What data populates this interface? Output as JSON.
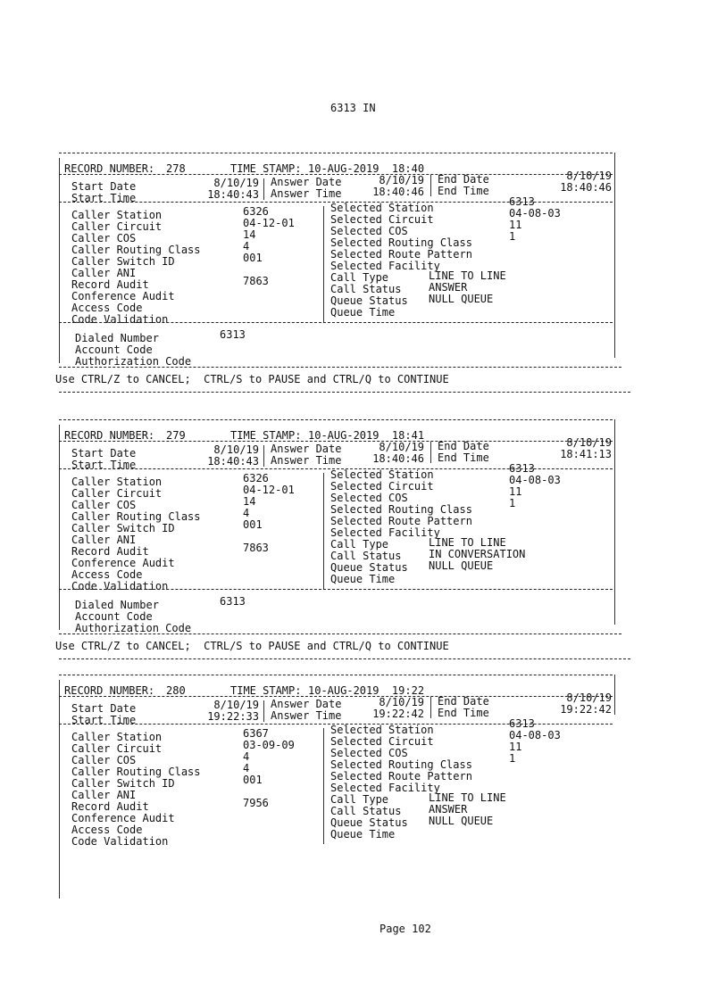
{
  "header": {
    "title": "6313 IN"
  },
  "labels": {
    "record_number": "RECORD NUMBER:",
    "time_stamp": "TIME STAMP:",
    "start_date": "Start Date",
    "start_time": "Start Time",
    "answer_date": "Answer Date",
    "answer_time": "Answer Time",
    "end_date": "End Date",
    "end_time": "End Time",
    "caller": [
      "Caller Station",
      "Caller Circuit",
      "Caller COS",
      "Caller Routing Class",
      "Caller Switch ID",
      "Caller ANI",
      "Record Audit",
      "Conference Audit",
      "Access Code",
      "Code Validation"
    ],
    "selected": [
      "Selected Station",
      "Selected Circuit",
      "Selected COS",
      "Selected Routing Class",
      "Selected Route Pattern",
      "Selected Facility",
      "Call Type",
      "Call Status",
      "Queue Status",
      "Queue Time"
    ],
    "dialed": [
      "Dialed Number",
      "Account Code",
      "Authorization Code"
    ]
  },
  "ctrl_message": "Use CTRL/Z to CANCEL;  CTRL/S to PAUSE and CTRL/Q to CONTINUE",
  "records": [
    {
      "number": "278",
      "time_stamp": "10-AUG-2019  18:40",
      "start_date": "8/10/19",
      "start_time": "18:40:43",
      "answer_date": "8/10/19",
      "answer_time": "18:40:46",
      "end_date": "8/10/19",
      "end_time": "18:40:46",
      "caller": [
        "6326",
        "04-12-01",
        "14",
        "4",
        "001",
        "",
        "7863",
        "",
        "",
        ""
      ],
      "selected": [
        "6313",
        "04-08-03",
        "11",
        "1",
        "",
        "",
        "LINE TO LINE",
        "ANSWER",
        "NULL QUEUE",
        ""
      ],
      "dialed": [
        "6313",
        "",
        ""
      ]
    },
    {
      "number": "279",
      "time_stamp": "10-AUG-2019  18:41",
      "start_date": "8/10/19",
      "start_time": "18:40:43",
      "answer_date": "8/10/19",
      "answer_time": "18:40:46",
      "end_date": "8/10/19",
      "end_time": "18:41:13",
      "caller": [
        "6326",
        "04-12-01",
        "14",
        "4",
        "001",
        "",
        "7863",
        "",
        "",
        ""
      ],
      "selected": [
        "6313",
        "04-08-03",
        "11",
        "1",
        "",
        "",
        "LINE TO LINE",
        "IN CONVERSATION",
        "NULL QUEUE",
        ""
      ],
      "dialed": [
        "6313",
        "",
        ""
      ]
    },
    {
      "number": "280",
      "time_stamp": "10-AUG-2019  19:22",
      "start_date": "8/10/19",
      "start_time": "19:22:33",
      "answer_date": "8/10/19",
      "answer_time": "19:22:42",
      "end_date": "8/10/19",
      "end_time": "19:22:42",
      "caller": [
        "6367",
        "03-09-09",
        "4",
        "4",
        "001",
        "",
        "7956",
        "",
        "",
        ""
      ],
      "selected": [
        "6313",
        "04-08-03",
        "11",
        "1",
        "",
        "",
        "LINE TO LINE",
        "ANSWER",
        "NULL QUEUE",
        ""
      ]
    }
  ],
  "footer": {
    "page": "Page 102"
  }
}
